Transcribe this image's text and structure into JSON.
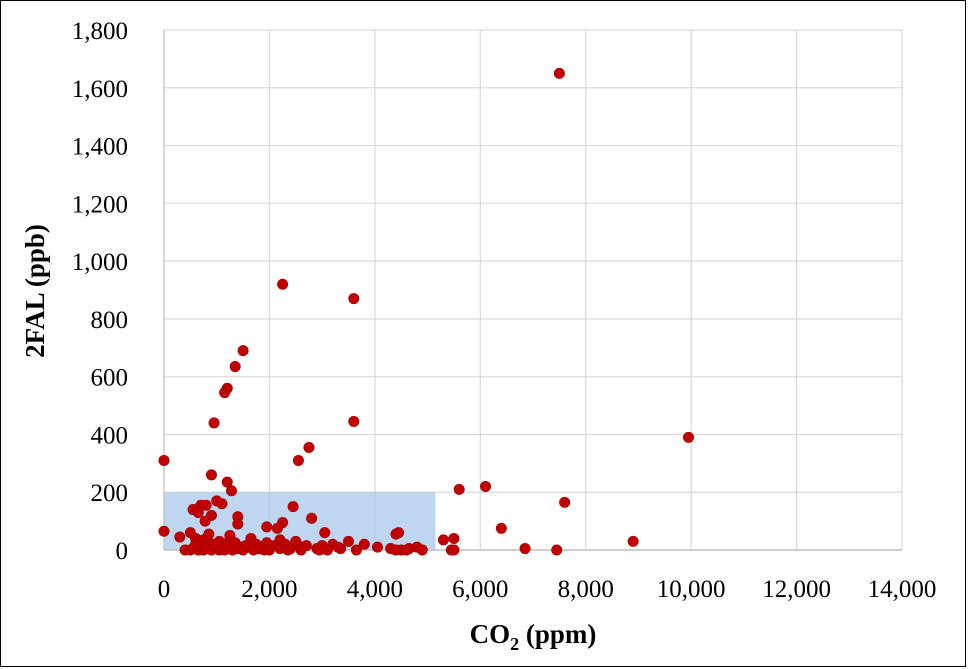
{
  "chart_data": {
    "type": "scatter",
    "title": "",
    "xlabel": "CO",
    "xlabel_subscript": "2",
    "xlabel_unit": " (ppm)",
    "ylabel": "2FAL (ppb)",
    "xlim": [
      0,
      14000
    ],
    "ylim": [
      0,
      1800
    ],
    "x_ticks": [
      0,
      2000,
      4000,
      6000,
      8000,
      10000,
      12000,
      14000
    ],
    "y_ticks": [
      0,
      200,
      400,
      600,
      800,
      1000,
      1200,
      1400,
      1600,
      1800
    ],
    "x_tick_labels": [
      "0",
      "2,000",
      "4,000",
      "6,000",
      "8,000",
      "10,000",
      "12,000",
      "14,000"
    ],
    "y_tick_labels": [
      "0",
      "200",
      "400",
      "600",
      "800",
      "1,000",
      "1,200",
      "1,400",
      "1,600",
      "1,800"
    ],
    "grid": true,
    "legend": "none",
    "colors": {
      "marker": "#c00000",
      "marker_stroke": "#9e0000",
      "region_fill": "#a9c8eb",
      "gridline": "#d9d9d9",
      "axis_line": "#bfbfbf"
    },
    "highlight_region": {
      "x": [
        0,
        5150
      ],
      "y": [
        0,
        200
      ]
    },
    "series": [
      {
        "points": [
          [
            7500,
            1650
          ],
          [
            2250,
            920
          ],
          [
            3600,
            870
          ],
          [
            1500,
            690
          ],
          [
            1350,
            635
          ],
          [
            1200,
            560
          ],
          [
            1150,
            545
          ],
          [
            950,
            440
          ],
          [
            3600,
            445
          ],
          [
            9950,
            390
          ],
          [
            2750,
            355
          ],
          [
            2550,
            310
          ],
          [
            0,
            310
          ],
          [
            900,
            260
          ],
          [
            1200,
            235
          ],
          [
            1280,
            205
          ],
          [
            5600,
            210
          ],
          [
            6100,
            220
          ],
          [
            7600,
            165
          ],
          [
            1000,
            170
          ],
          [
            1100,
            160
          ],
          [
            700,
            155
          ],
          [
            800,
            155
          ],
          [
            550,
            140
          ],
          [
            650,
            130
          ],
          [
            900,
            120
          ],
          [
            2450,
            150
          ],
          [
            1400,
            115
          ],
          [
            780,
            100
          ],
          [
            2250,
            95
          ],
          [
            1400,
            90
          ],
          [
            1950,
            80
          ],
          [
            2150,
            75
          ],
          [
            2800,
            110
          ],
          [
            3050,
            60
          ],
          [
            4450,
            60
          ],
          [
            4400,
            55
          ],
          [
            6400,
            75
          ],
          [
            0,
            65
          ],
          [
            500,
            60
          ],
          [
            300,
            45
          ],
          [
            600,
            40
          ],
          [
            750,
            35
          ],
          [
            850,
            25
          ],
          [
            950,
            20
          ],
          [
            1050,
            30
          ],
          [
            1150,
            15
          ],
          [
            1250,
            35
          ],
          [
            1350,
            25
          ],
          [
            1450,
            10
          ],
          [
            1550,
            15
          ],
          [
            1650,
            40
          ],
          [
            1750,
            20
          ],
          [
            1850,
            10
          ],
          [
            1950,
            25
          ],
          [
            2100,
            15
          ],
          [
            2200,
            35
          ],
          [
            2300,
            20
          ],
          [
            2400,
            5
          ],
          [
            2500,
            30
          ],
          [
            2600,
            10
          ],
          [
            2700,
            15
          ],
          [
            2900,
            5
          ],
          [
            3000,
            15
          ],
          [
            3200,
            20
          ],
          [
            3350,
            5
          ],
          [
            3500,
            30
          ],
          [
            3800,
            20
          ],
          [
            4050,
            10
          ],
          [
            4300,
            5
          ],
          [
            4500,
            0
          ],
          [
            4650,
            5
          ],
          [
            4800,
            10
          ],
          [
            5300,
            35
          ],
          [
            5500,
            40
          ],
          [
            5450,
            0
          ],
          [
            6850,
            5
          ],
          [
            7450,
            0
          ],
          [
            8900,
            30
          ],
          [
            400,
            0
          ],
          [
            500,
            0
          ],
          [
            550,
            5
          ],
          [
            650,
            0
          ],
          [
            700,
            10
          ],
          [
            750,
            0
          ],
          [
            800,
            5
          ],
          [
            900,
            0
          ],
          [
            1000,
            10
          ],
          [
            1050,
            0
          ],
          [
            1100,
            5
          ],
          [
            1150,
            0
          ],
          [
            1200,
            10
          ],
          [
            1300,
            0
          ],
          [
            1400,
            5
          ],
          [
            1500,
            0
          ],
          [
            1600,
            10
          ],
          [
            1700,
            0
          ],
          [
            1800,
            5
          ],
          [
            1900,
            0
          ],
          [
            2000,
            0
          ],
          [
            2200,
            5
          ],
          [
            2600,
            0
          ],
          [
            3100,
            0
          ],
          [
            3300,
            10
          ],
          [
            3650,
            0
          ],
          [
            4900,
            0
          ],
          [
            5500,
            0
          ],
          [
            2350,
            0
          ],
          [
            1250,
            50
          ],
          [
            850,
            55
          ],
          [
            600,
            20
          ],
          [
            2950,
            0
          ],
          [
            4400,
            0
          ],
          [
            4600,
            0
          ]
        ]
      }
    ]
  }
}
